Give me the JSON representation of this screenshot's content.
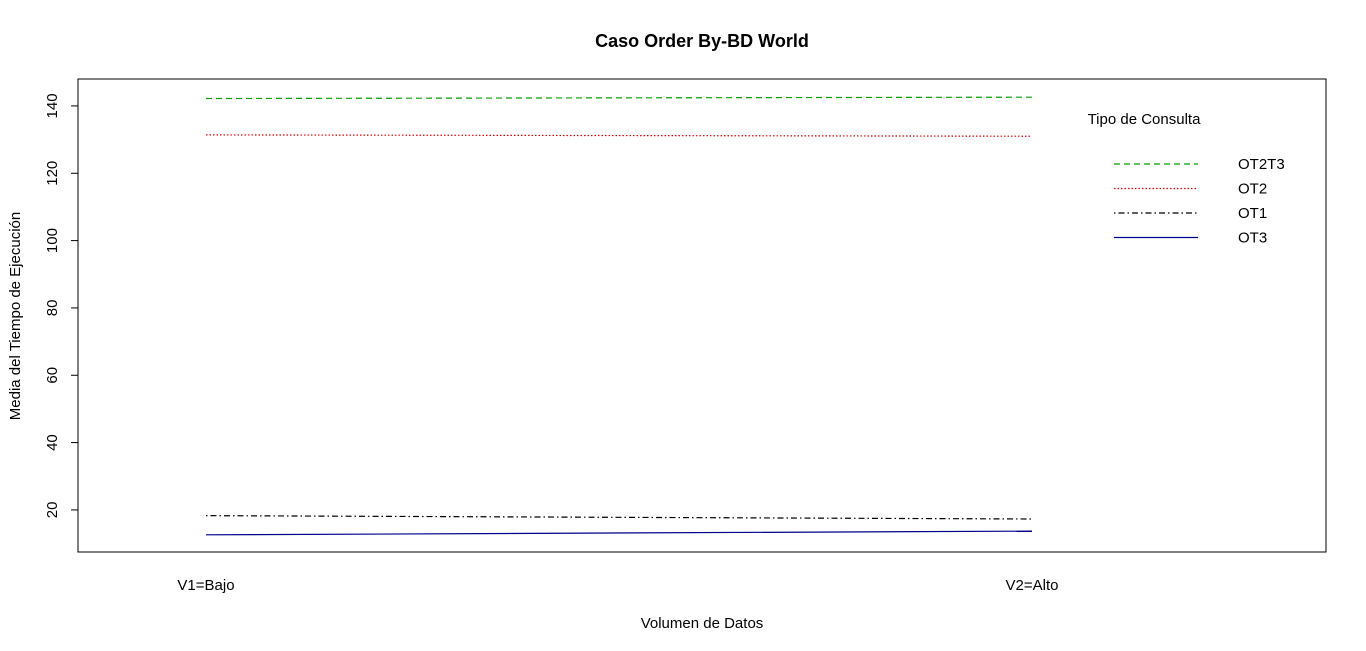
{
  "chart_data": {
    "type": "line",
    "title": "Caso Order By-BD World",
    "xlabel": "Volumen de Datos",
    "ylabel": "Media del Tiempo de Ejecución",
    "categories": [
      "V1=Bajo",
      "V2=Alto"
    ],
    "ylim": [
      7.5,
      148
    ],
    "yticks": [
      20,
      40,
      60,
      80,
      100,
      120,
      140
    ],
    "grid": false,
    "legend": {
      "title": "Tipo de Consulta",
      "placement": "top-right",
      "entries": [
        "OT2T3",
        "OT2",
        "OT1",
        "OT3"
      ]
    },
    "series": [
      {
        "name": "OT2T3",
        "values": [
          142.2,
          142.6
        ],
        "color": "#00a000",
        "dash": "dashed"
      },
      {
        "name": "OT2",
        "values": [
          131.4,
          131.0
        ],
        "color": "#e00000",
        "dash": "dotted"
      },
      {
        "name": "OT1",
        "values": [
          18.3,
          17.3
        ],
        "color": "#000000",
        "dash": "dotdash"
      },
      {
        "name": "OT3",
        "values": [
          12.6,
          13.7
        ],
        "color": "#00008b",
        "dash": "solid"
      }
    ]
  }
}
